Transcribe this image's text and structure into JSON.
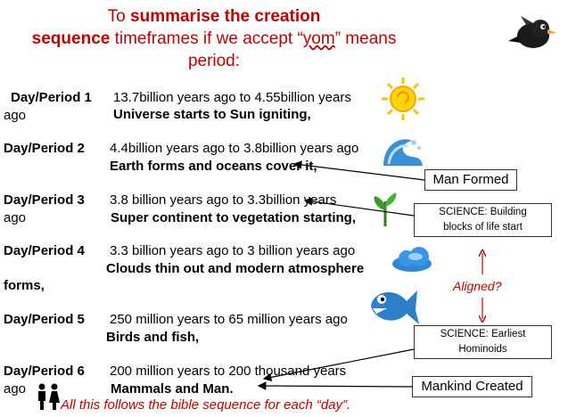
{
  "title": {
    "line1_prefix": "To ",
    "line1_bold": "summarise the creation",
    "line2_bold": "sequence",
    "line2_mid": "  timeframes  if we accept “",
    "line2_underlined": "yom",
    "line2_suffix": "” means",
    "line3": "period:"
  },
  "periods": [
    {
      "label": "Day/Period 1",
      "range": "13.7billion years ago to 4.55billion years",
      "wrap": "ago",
      "desc": "Universe starts to Sun igniting,"
    },
    {
      "label": "Day/Period 2",
      "range": "4.4billion years ago to 3.8billion years ago",
      "wrap": "",
      "desc": "Earth forms and oceans cover it,"
    },
    {
      "label": "Day/Period 3",
      "range": "3.8 billion years ago to 3.3billion years",
      "wrap": "ago",
      "desc": "Super continent to vegetation starting,"
    },
    {
      "label": "Day/Period 4",
      "range": "3.3 billion years ago to 3 billion years ago",
      "wrap": "",
      "desc": "Clouds thin out and modern atmosphere",
      "desc_wrap": "forms,"
    },
    {
      "label": "Day/Period 5",
      "range": "250 million years to 65 million years ago",
      "wrap": "",
      "desc": "Birds and fish,"
    },
    {
      "label": "Day/Period 6",
      "range": "200 million years to 200 thousand  years",
      "wrap": "ago",
      "desc": "Mammals and Man."
    }
  ],
  "callouts": {
    "man_formed": "Man Formed",
    "science_building_line1": "SCIENCE: Building",
    "science_building_line2": "blocks of life start",
    "aligned": "Aligned?",
    "science_hominoids_line1": "SCIENCE: Earliest",
    "science_hominoids_line2": "Hominoids",
    "mankind_created": "Mankind Created"
  },
  "footer": "All this follows the bible sequence for each “day”.",
  "colors": {
    "accent_red": "#c00000",
    "sun": "#f5c400",
    "water": "#3a8fd8",
    "plant": "#3a9a2a",
    "cloud": "#2f86d6",
    "fish": "#2d7fc8"
  },
  "icons": [
    "bird-icon",
    "sun-icon",
    "wave-icon",
    "plant-icon",
    "cloud-icon",
    "fish-icon",
    "people-icon"
  ]
}
